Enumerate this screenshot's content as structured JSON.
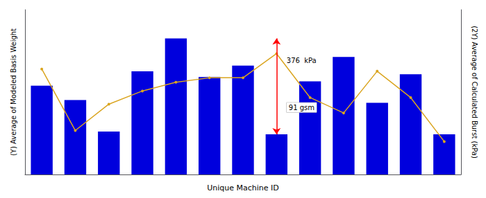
{
  "chart_data": {
    "type": "bar",
    "xlabel": "Unique Machine ID",
    "ylabel": "(Y) Average of Modeled Basis Weight",
    "y2label": "(2Y) Average of Calculated Burst (kPa)",
    "categories": [
      null,
      null,
      null,
      null,
      null,
      null,
      null,
      null,
      null,
      null,
      null,
      null,
      null
    ],
    "series": [
      {
        "type": "bar",
        "color": "#0000DD",
        "values": [
          62,
          52,
          30,
          72,
          95,
          68,
          76,
          28,
          65,
          82,
          50,
          70,
          28
        ]
      },
      {
        "type": "line",
        "axis": "y2",
        "color": "#DAA520",
        "marker": "circle",
        "values": [
          88,
          60,
          72,
          78,
          82,
          84,
          84,
          95,
          75,
          68,
          87,
          75,
          55
        ]
      }
    ],
    "ylim": [
      0,
      115
    ],
    "y2lim": [
      40,
      115
    ],
    "grid": false,
    "tick_labels": false,
    "annotations": [
      {
        "type": "arrow",
        "x": 7,
        "y": [
          28,
          95
        ],
        "color": "red"
      },
      {
        "text": "376  kPa"
      },
      {
        "text": "91 gsm"
      }
    ]
  }
}
